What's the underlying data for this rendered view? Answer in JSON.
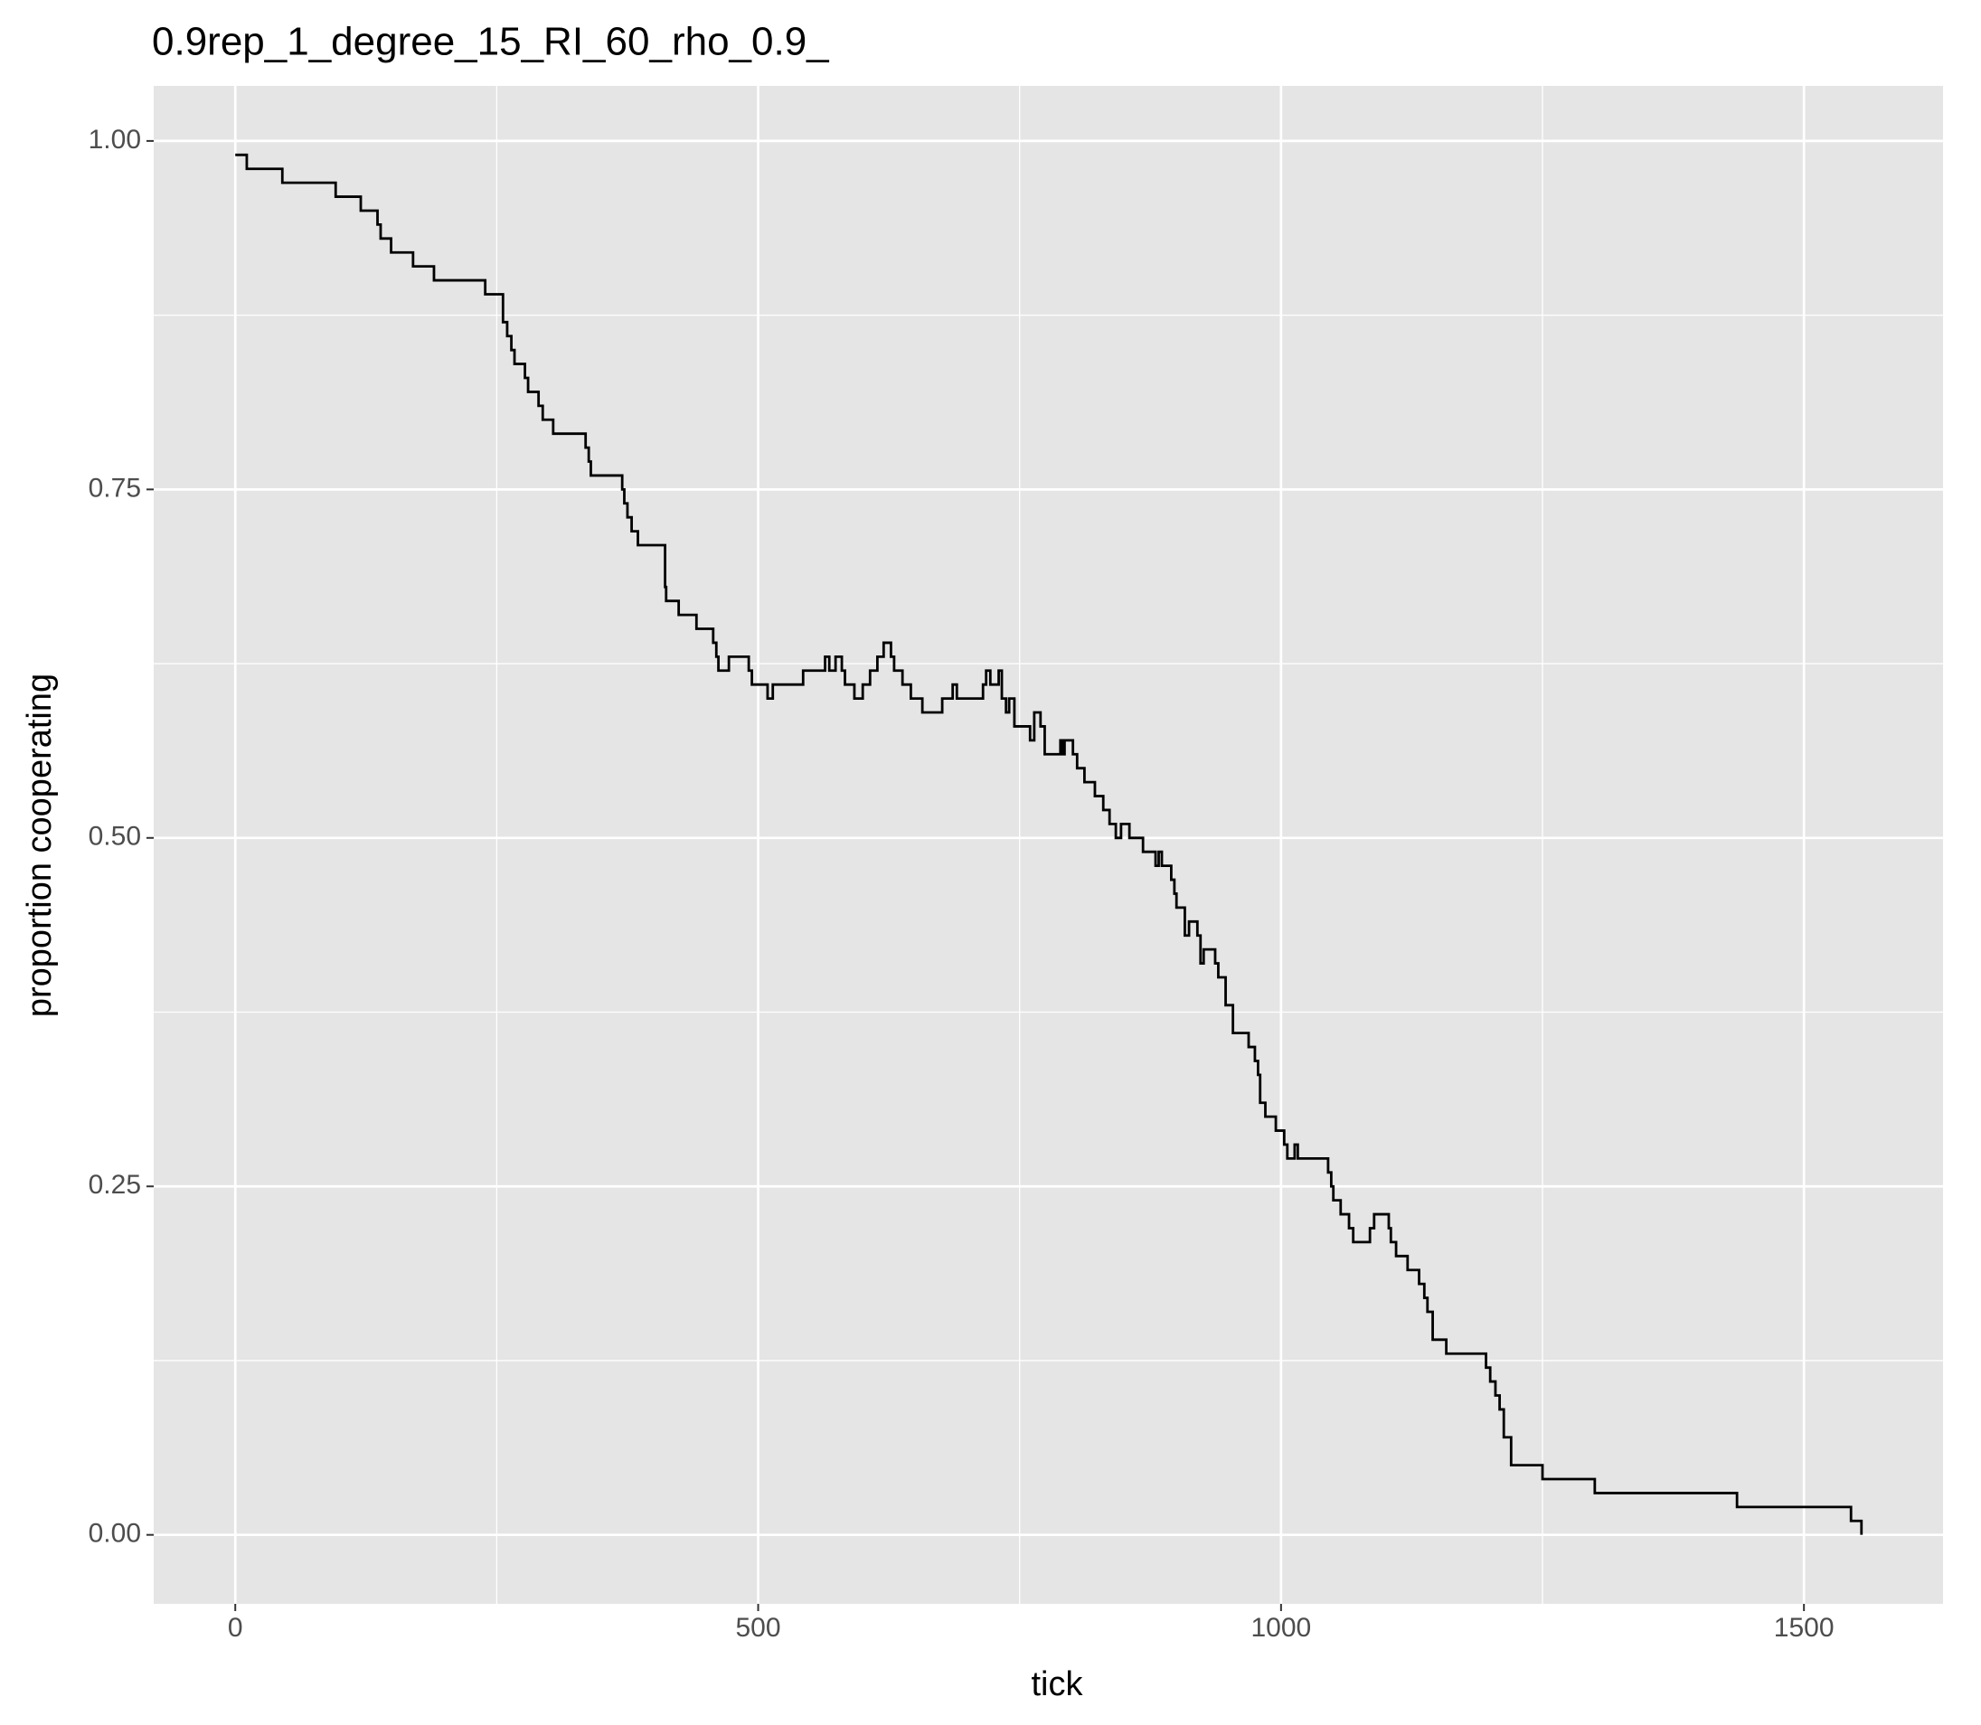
{
  "chart_data": {
    "type": "step",
    "title": "0.9rep_1_degree_15_RI_60_rho_0.9_",
    "xlabel": "tick",
    "ylabel": "proportion cooperating",
    "xlim": [
      -78,
      1633
    ],
    "ylim": [
      -0.0495,
      1.0395
    ],
    "xticks": [
      0,
      500,
      1000,
      1500
    ],
    "yticks": [
      {
        "value": 0,
        "label": "0.00"
      },
      {
        "value": 0.25,
        "label": "0.25"
      },
      {
        "value": 0.5,
        "label": "0.50"
      },
      {
        "value": 0.75,
        "label": "0.75"
      },
      {
        "value": 1,
        "label": "1.00"
      }
    ],
    "xminor": [
      250,
      750,
      1250
    ],
    "yminor": [
      0.125,
      0.375,
      0.625,
      0.875
    ],
    "grid": true,
    "color": "#000000",
    "x": [
      0,
      11,
      45,
      96,
      120,
      136,
      139,
      149,
      170,
      190,
      239,
      256,
      260,
      264,
      267,
      277,
      280,
      290,
      294,
      304,
      335,
      338,
      340,
      370,
      372,
      375,
      379,
      385,
      411,
      412,
      414,
      424,
      441,
      457,
      460,
      462,
      472,
      491,
      494,
      509,
      514,
      543,
      564,
      568,
      574,
      580,
      583,
      592,
      600,
      607,
      614,
      620,
      627,
      630,
      638,
      646,
      657,
      676,
      686,
      690,
      715,
      718,
      722,
      730,
      733,
      737,
      740,
      745,
      760,
      764,
      770,
      774,
      789,
      791,
      793,
      801,
      805,
      812,
      822,
      830,
      836,
      842,
      847,
      855,
      868,
      880,
      883,
      886,
      895,
      898,
      900,
      908,
      912,
      920,
      923,
      926,
      937,
      940,
      947,
      954,
      969,
      975,
      978,
      980,
      985,
      995,
      1003,
      1006,
      1013,
      1016,
      1045,
      1048,
      1050,
      1057,
      1065,
      1069,
      1085,
      1089,
      1103,
      1105,
      1110,
      1121,
      1132,
      1137,
      1140,
      1145,
      1158,
      1196,
      1200,
      1205,
      1209,
      1213,
      1220,
      1250,
      1300,
      1436,
      1545,
      1555
    ],
    "values": [
      0.99,
      0.98,
      0.97,
      0.96,
      0.95,
      0.94,
      0.93,
      0.92,
      0.91,
      0.9,
      0.89,
      0.87,
      0.86,
      0.85,
      0.84,
      0.83,
      0.82,
      0.81,
      0.8,
      0.79,
      0.78,
      0.77,
      0.76,
      0.75,
      0.74,
      0.73,
      0.72,
      0.71,
      0.68,
      0.67,
      0.67,
      0.66,
      0.65,
      0.64,
      0.63,
      0.62,
      0.63,
      0.62,
      0.61,
      0.6,
      0.61,
      0.62,
      0.63,
      0.62,
      0.63,
      0.62,
      0.61,
      0.6,
      0.61,
      0.62,
      0.63,
      0.64,
      0.63,
      0.62,
      0.61,
      0.6,
      0.59,
      0.6,
      0.61,
      0.6,
      0.61,
      0.62,
      0.61,
      0.62,
      0.6,
      0.59,
      0.6,
      0.58,
      0.57,
      0.59,
      0.58,
      0.56,
      0.57,
      0.56,
      0.57,
      0.56,
      0.55,
      0.54,
      0.53,
      0.52,
      0.51,
      0.5,
      0.51,
      0.5,
      0.49,
      0.48,
      0.49,
      0.48,
      0.47,
      0.46,
      0.45,
      0.43,
      0.44,
      0.43,
      0.41,
      0.42,
      0.41,
      0.4,
      0.38,
      0.36,
      0.35,
      0.34,
      0.33,
      0.31,
      0.3,
      0.29,
      0.28,
      0.27,
      0.28,
      0.27,
      0.26,
      0.25,
      0.24,
      0.23,
      0.22,
      0.21,
      0.22,
      0.23,
      0.22,
      0.21,
      0.2,
      0.19,
      0.18,
      0.17,
      0.16,
      0.14,
      0.13,
      0.12,
      0.11,
      0.1,
      0.09,
      0.07,
      0.05,
      0.04,
      0.03,
      0.02,
      0.01,
      0
    ]
  }
}
